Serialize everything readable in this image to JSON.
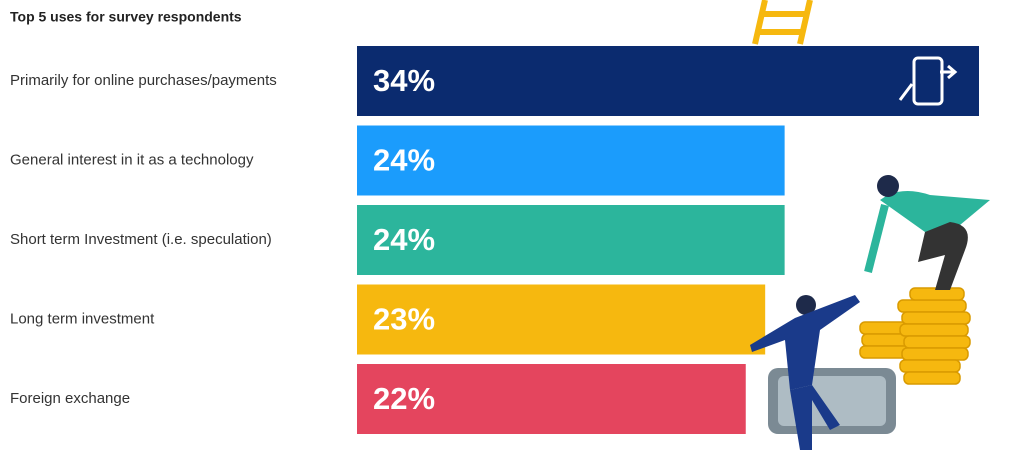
{
  "chart_data": {
    "type": "bar",
    "orientation": "horizontal",
    "title": "Top 5 uses for survey respondents",
    "categories": [
      "Primarily for online purchases/payments",
      "General interest in it as a technology",
      "Short term Investment (i.e. speculation)",
      "Long term investment",
      "Foreign exchange"
    ],
    "values": [
      34,
      24,
      24,
      23,
      22
    ],
    "value_labels": [
      "34%",
      "24%",
      "24%",
      "23%",
      "22%"
    ],
    "colors": [
      "#0b2b6f",
      "#1b9cfc",
      "#2cb59c",
      "#f6b80f",
      "#e4455e"
    ],
    "xlim": [
      2,
      34
    ]
  }
}
